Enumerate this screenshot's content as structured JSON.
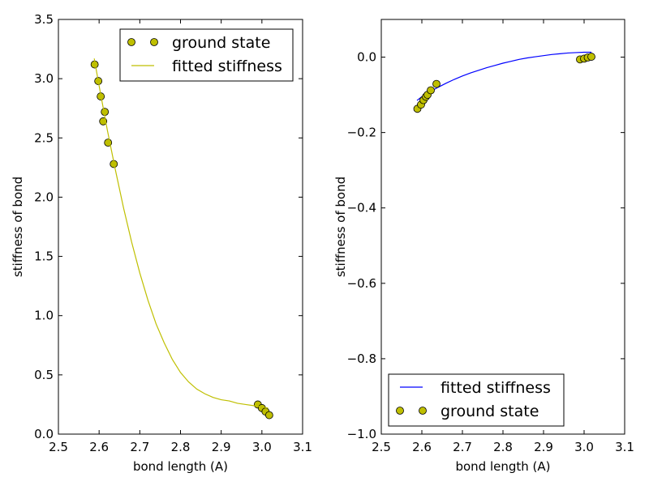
{
  "chart_data": [
    {
      "type": "line",
      "xlabel": "bond length (A)",
      "ylabel": "stiffness of bond",
      "xlim": [
        2.5,
        3.1
      ],
      "ylim": [
        0.0,
        3.5
      ],
      "xticks": [
        "2.5",
        "2.6",
        "2.7",
        "2.8",
        "2.9",
        "3.0",
        "3.1"
      ],
      "yticks": [
        "0.0",
        "0.5",
        "1.0",
        "1.5",
        "2.0",
        "2.5",
        "3.0",
        "3.5"
      ],
      "grid": false,
      "legend_position": "top-right",
      "legend_entries": [
        "ground state",
        "fitted stiffness"
      ],
      "series": [
        {
          "name": "ground state",
          "kind": "markers",
          "color": "#bfbf00",
          "x": [
            2.589,
            2.598,
            2.604,
            2.61,
            2.614,
            2.622,
            2.636,
            2.99,
            3.0,
            3.009,
            3.018
          ],
          "y": [
            3.12,
            2.98,
            2.85,
            2.64,
            2.72,
            2.46,
            2.28,
            0.25,
            0.22,
            0.19,
            0.16
          ]
        },
        {
          "name": "fitted stiffness",
          "kind": "line",
          "color": "#bfbf00",
          "x": [
            2.588,
            2.6,
            2.62,
            2.64,
            2.66,
            2.68,
            2.7,
            2.72,
            2.74,
            2.76,
            2.78,
            2.8,
            2.82,
            2.84,
            2.86,
            2.88,
            2.9,
            2.92,
            2.94,
            2.96,
            2.98,
            3.0,
            3.015
          ],
          "y": [
            3.17,
            2.94,
            2.57,
            2.23,
            1.91,
            1.62,
            1.36,
            1.13,
            0.93,
            0.77,
            0.63,
            0.52,
            0.44,
            0.38,
            0.34,
            0.31,
            0.29,
            0.28,
            0.26,
            0.25,
            0.24,
            0.23,
            0.22
          ]
        }
      ]
    },
    {
      "type": "line",
      "xlabel": "bond length (A)",
      "ylabel": "stiffness of bond",
      "xlim": [
        2.5,
        3.1
      ],
      "ylim": [
        -1.0,
        0.1
      ],
      "xticks": [
        "2.5",
        "2.6",
        "2.7",
        "2.8",
        "2.9",
        "3.0",
        "3.1"
      ],
      "yticks": [
        "−1.0",
        "−0.8",
        "−0.6",
        "−0.4",
        "−0.2",
        "0.0"
      ],
      "grid": false,
      "legend_position": "bottom-left",
      "legend_entries": [
        "fitted stiffness",
        "ground state"
      ],
      "series": [
        {
          "name": "fitted stiffness",
          "kind": "line",
          "color": "#0000ff",
          "x": [
            2.588,
            2.6,
            2.62,
            2.64,
            2.66,
            2.68,
            2.7,
            2.72,
            2.74,
            2.76,
            2.78,
            2.8,
            2.82,
            2.84,
            2.86,
            2.88,
            2.9,
            2.92,
            2.94,
            2.96,
            2.98,
            3.0,
            3.018
          ],
          "y": [
            -0.115,
            -0.105,
            -0.092,
            -0.08,
            -0.069,
            -0.059,
            -0.05,
            -0.042,
            -0.035,
            -0.028,
            -0.022,
            -0.016,
            -0.011,
            -0.006,
            -0.002,
            0.001,
            0.004,
            0.007,
            0.009,
            0.011,
            0.012,
            0.013,
            0.013
          ]
        },
        {
          "name": "ground state",
          "kind": "markers",
          "color": "#bfbf00",
          "x": [
            2.589,
            2.598,
            2.604,
            2.61,
            2.614,
            2.622,
            2.636,
            2.99,
            3.0,
            3.009,
            3.018
          ],
          "y": [
            -0.137,
            -0.126,
            -0.114,
            -0.105,
            -0.1,
            -0.088,
            -0.071,
            -0.006,
            -0.004,
            -0.001,
            0.001
          ]
        }
      ]
    }
  ]
}
